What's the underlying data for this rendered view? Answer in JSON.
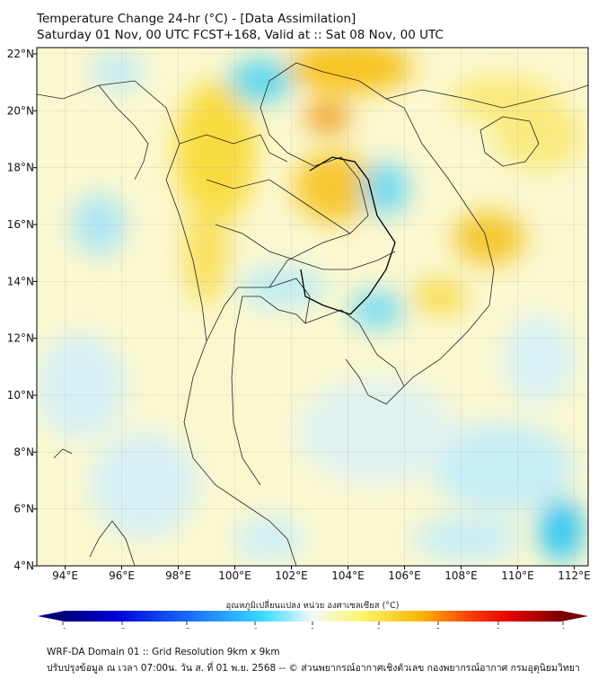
{
  "title_line1": "Temperature Change 24-hr (°C) - [Data Assimilation]",
  "title_line2": "Saturday 01 Nov, 00 UTC FCST+168, Valid at :: Sat 08 Nov, 00 UTC",
  "chart_data": {
    "type": "heatmap",
    "variable": "Temperature Change 24-hr (°C)",
    "lon_ticks": [
      "94°E",
      "96°E",
      "98°E",
      "100°E",
      "102°E",
      "104°E",
      "106°E",
      "108°E",
      "110°E",
      "112°E"
    ],
    "lon_values": [
      94,
      96,
      98,
      100,
      102,
      104,
      106,
      108,
      110,
      112
    ],
    "lat_ticks": [
      "22°N",
      "20°N",
      "18°N",
      "16°N",
      "14°N",
      "12°N",
      "10°N",
      "8°N",
      "6°N",
      "4°N"
    ],
    "lat_values": [
      22,
      20,
      18,
      16,
      14,
      12,
      10,
      8,
      6,
      4
    ],
    "lon_range": [
      93,
      112.5
    ],
    "lat_range": [
      4,
      22.2
    ],
    "colorbar": {
      "label": "อุณหภูมิเปลี่ยนแปลง หน่วย องศาเซลเซียส (°C)",
      "ticks": [
        "-4",
        "-3",
        "-2",
        "-1",
        "0",
        "1",
        "2",
        "3",
        "4"
      ],
      "range": [
        -4,
        4
      ]
    }
  },
  "footer_line1": "WRF-DA Domain 01 :: Grid Resolution 9km x 9km",
  "footer_line2": "ปรับปรุงข้อมูล ณ เวลา 07:00น. วัน ส. ที่ 01 พ.ย. 2568 -- © ส่วนพยากรณ์อากาศเชิงตัวเลข กองพยากรณ์อากาศ กรมอุตุนิยมวิทยา"
}
